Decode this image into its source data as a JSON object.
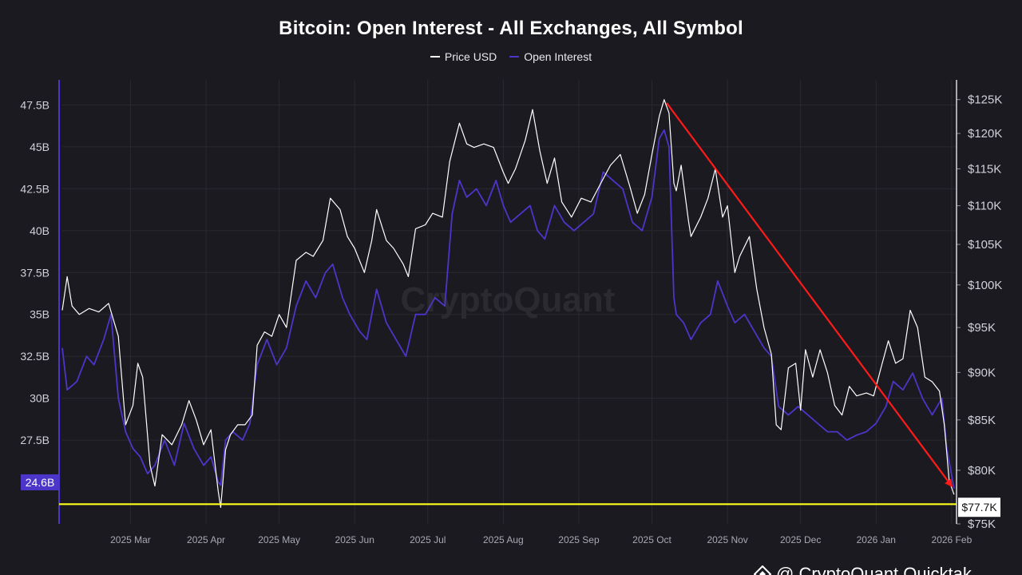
{
  "colors": {
    "background": "#1b1a20",
    "price": "#ffffff",
    "open_interest": "#4b36c9",
    "trend_arrow": "#ff1a1a",
    "support_line": "#ffff1a",
    "grid": "#2a2930",
    "axis_text": "#d0d0d8"
  },
  "watermark": "CryptoQuant",
  "badge_text": "@ CryptoQuant Quicktak...",
  "chart_data": {
    "type": "line",
    "title": "Bitcoin: Open Interest - All Exchanges, All Symbol",
    "grid": true,
    "legend_position": "top-center",
    "x_axis": {
      "type": "date",
      "range": [
        "2025-02-01",
        "2026-02-03"
      ],
      "tick_labels": [
        "2025 Mar",
        "2025 Apr",
        "2025 May",
        "2025 Jun",
        "2025 Jul",
        "2025 Aug",
        "2025 Sep",
        "2025 Oct",
        "2025 Nov",
        "2025 Dec",
        "2026 Jan",
        "2026 Feb"
      ],
      "tick_dates": [
        "2025-03-01",
        "2025-04-01",
        "2025-05-01",
        "2025-06-01",
        "2025-07-01",
        "2025-08-01",
        "2025-09-01",
        "2025-10-01",
        "2025-11-01",
        "2025-12-01",
        "2026-01-01",
        "2026-02-01"
      ]
    },
    "y_left": {
      "label": "",
      "range": [
        22.5,
        49.0
      ],
      "tick_values": [
        27.5,
        30,
        32.5,
        35,
        37.5,
        40,
        42.5,
        45,
        47.5
      ],
      "tick_labels": [
        "27.5B",
        "30B",
        "32.5B",
        "35B",
        "37.5B",
        "40B",
        "42.5B",
        "45B",
        "47.5B"
      ],
      "current_value": 24.6,
      "current_label": "24.6B"
    },
    "y_right": {
      "label": "",
      "scale": "log",
      "range": [
        75000,
        128000
      ],
      "tick_values": [
        75000,
        80000,
        85000,
        90000,
        95000,
        100000,
        105000,
        110000,
        115000,
        120000,
        125000
      ],
      "tick_labels": [
        "$75K",
        "$80K",
        "$85K",
        "$90K",
        "$95K",
        "$100K",
        "$105K",
        "$110K",
        "$115K",
        "$120K",
        "$125K"
      ],
      "current_value": 77700,
      "current_label": "$77.7K"
    },
    "series": [
      {
        "name": "Price USD",
        "axis": "right",
        "points": [
          [
            "2025-02-01",
            97000
          ],
          [
            "2025-02-03",
            101000
          ],
          [
            "2025-02-05",
            97500
          ],
          [
            "2025-02-08",
            96500
          ],
          [
            "2025-02-12",
            97200
          ],
          [
            "2025-02-16",
            96800
          ],
          [
            "2025-02-20",
            97800
          ],
          [
            "2025-02-24",
            94000
          ],
          [
            "2025-02-27",
            84500
          ],
          [
            "2025-03-02",
            86500
          ],
          [
            "2025-03-04",
            91000
          ],
          [
            "2025-03-06",
            89500
          ],
          [
            "2025-03-09",
            80500
          ],
          [
            "2025-03-11",
            78500
          ],
          [
            "2025-03-14",
            83500
          ],
          [
            "2025-03-18",
            82500
          ],
          [
            "2025-03-22",
            84500
          ],
          [
            "2025-03-25",
            87000
          ],
          [
            "2025-03-28",
            85000
          ],
          [
            "2025-03-31",
            82500
          ],
          [
            "2025-04-03",
            84000
          ],
          [
            "2025-04-06",
            78000
          ],
          [
            "2025-04-07",
            76500
          ],
          [
            "2025-04-09",
            82000
          ],
          [
            "2025-04-11",
            83500
          ],
          [
            "2025-04-14",
            84500
          ],
          [
            "2025-04-17",
            84500
          ],
          [
            "2025-04-20",
            85500
          ],
          [
            "2025-04-22",
            93000
          ],
          [
            "2025-04-25",
            94500
          ],
          [
            "2025-04-28",
            94000
          ],
          [
            "2025-05-01",
            96500
          ],
          [
            "2025-05-04",
            95000
          ],
          [
            "2025-05-08",
            103000
          ],
          [
            "2025-05-12",
            104000
          ],
          [
            "2025-05-15",
            103500
          ],
          [
            "2025-05-19",
            105500
          ],
          [
            "2025-05-22",
            111000
          ],
          [
            "2025-05-26",
            109500
          ],
          [
            "2025-05-29",
            106000
          ],
          [
            "2025-06-01",
            104500
          ],
          [
            "2025-06-05",
            101500
          ],
          [
            "2025-06-08",
            105500
          ],
          [
            "2025-06-10",
            109500
          ],
          [
            "2025-06-14",
            105500
          ],
          [
            "2025-06-17",
            104500
          ],
          [
            "2025-06-21",
            102500
          ],
          [
            "2025-06-23",
            101000
          ],
          [
            "2025-06-26",
            107000
          ],
          [
            "2025-06-30",
            107500
          ],
          [
            "2025-07-03",
            109000
          ],
          [
            "2025-07-07",
            108500
          ],
          [
            "2025-07-10",
            116000
          ],
          [
            "2025-07-14",
            121500
          ],
          [
            "2025-07-17",
            118500
          ],
          [
            "2025-07-20",
            118000
          ],
          [
            "2025-07-24",
            118500
          ],
          [
            "2025-07-28",
            118000
          ],
          [
            "2025-08-01",
            114500
          ],
          [
            "2025-08-03",
            113000
          ],
          [
            "2025-08-06",
            115000
          ],
          [
            "2025-08-10",
            119000
          ],
          [
            "2025-08-13",
            123500
          ],
          [
            "2025-08-16",
            117500
          ],
          [
            "2025-08-19",
            113000
          ],
          [
            "2025-08-22",
            116500
          ],
          [
            "2025-08-25",
            110500
          ],
          [
            "2025-08-29",
            108500
          ],
          [
            "2025-09-02",
            111000
          ],
          [
            "2025-09-06",
            110500
          ],
          [
            "2025-09-10",
            113000
          ],
          [
            "2025-09-14",
            115500
          ],
          [
            "2025-09-18",
            117000
          ],
          [
            "2025-09-22",
            112500
          ],
          [
            "2025-09-25",
            109000
          ],
          [
            "2025-09-28",
            111500
          ],
          [
            "2025-10-01",
            117000
          ],
          [
            "2025-10-04",
            122500
          ],
          [
            "2025-10-06",
            125000
          ],
          [
            "2025-10-08",
            123000
          ],
          [
            "2025-10-10",
            113000
          ],
          [
            "2025-10-11",
            112000
          ],
          [
            "2025-10-13",
            115500
          ],
          [
            "2025-10-16",
            108000
          ],
          [
            "2025-10-17",
            106000
          ],
          [
            "2025-10-21",
            108500
          ],
          [
            "2025-10-24",
            111000
          ],
          [
            "2025-10-27",
            115000
          ],
          [
            "2025-10-30",
            108500
          ],
          [
            "2025-11-01",
            110000
          ],
          [
            "2025-11-04",
            101500
          ],
          [
            "2025-11-06",
            103500
          ],
          [
            "2025-11-10",
            106000
          ],
          [
            "2025-11-13",
            99500
          ],
          [
            "2025-11-16",
            95000
          ],
          [
            "2025-11-19",
            92000
          ],
          [
            "2025-11-21",
            84500
          ],
          [
            "2025-11-23",
            84000
          ],
          [
            "2025-11-26",
            90500
          ],
          [
            "2025-11-29",
            91000
          ],
          [
            "2025-12-01",
            86000
          ],
          [
            "2025-12-03",
            92500
          ],
          [
            "2025-12-06",
            89500
          ],
          [
            "2025-12-09",
            92500
          ],
          [
            "2025-12-12",
            90000
          ],
          [
            "2025-12-15",
            86500
          ],
          [
            "2025-12-18",
            85500
          ],
          [
            "2025-12-21",
            88500
          ],
          [
            "2025-12-24",
            87500
          ],
          [
            "2025-12-28",
            87800
          ],
          [
            "2025-12-31",
            87500
          ],
          [
            "2026-01-03",
            90500
          ],
          [
            "2026-01-06",
            93500
          ],
          [
            "2026-01-09",
            91000
          ],
          [
            "2026-01-12",
            91500
          ],
          [
            "2026-01-15",
            97000
          ],
          [
            "2026-01-18",
            95000
          ],
          [
            "2026-01-21",
            89500
          ],
          [
            "2026-01-24",
            89000
          ],
          [
            "2026-01-27",
            88000
          ],
          [
            "2026-01-29",
            84500
          ],
          [
            "2026-01-31",
            79000
          ],
          [
            "2026-02-02",
            77700
          ]
        ]
      },
      {
        "name": "Open Interest",
        "axis": "left",
        "points": [
          [
            "2025-02-01",
            33.0
          ],
          [
            "2025-02-03",
            30.5
          ],
          [
            "2025-02-07",
            31.0
          ],
          [
            "2025-02-11",
            32.5
          ],
          [
            "2025-02-14",
            32.0
          ],
          [
            "2025-02-18",
            33.5
          ],
          [
            "2025-02-21",
            35.0
          ],
          [
            "2025-02-24",
            30.0
          ],
          [
            "2025-02-27",
            28.0
          ],
          [
            "2025-03-02",
            27.0
          ],
          [
            "2025-03-05",
            26.5
          ],
          [
            "2025-03-08",
            25.5
          ],
          [
            "2025-03-11",
            26.0
          ],
          [
            "2025-03-15",
            27.5
          ],
          [
            "2025-03-19",
            26.0
          ],
          [
            "2025-03-23",
            28.5
          ],
          [
            "2025-03-27",
            27.0
          ],
          [
            "2025-03-31",
            26.0
          ],
          [
            "2025-04-03",
            26.5
          ],
          [
            "2025-04-06",
            25.0
          ],
          [
            "2025-04-07",
            24.8
          ],
          [
            "2025-04-09",
            27.5
          ],
          [
            "2025-04-12",
            28.0
          ],
          [
            "2025-04-16",
            27.5
          ],
          [
            "2025-04-19",
            28.5
          ],
          [
            "2025-04-22",
            32.0
          ],
          [
            "2025-04-26",
            33.5
          ],
          [
            "2025-04-30",
            32.0
          ],
          [
            "2025-05-04",
            33.0
          ],
          [
            "2025-05-08",
            35.5
          ],
          [
            "2025-05-12",
            37.0
          ],
          [
            "2025-05-16",
            36.0
          ],
          [
            "2025-05-20",
            37.5
          ],
          [
            "2025-05-23",
            38.0
          ],
          [
            "2025-05-27",
            36.0
          ],
          [
            "2025-05-30",
            35.0
          ],
          [
            "2025-06-03",
            34.0
          ],
          [
            "2025-06-06",
            33.5
          ],
          [
            "2025-06-10",
            36.5
          ],
          [
            "2025-06-14",
            34.5
          ],
          [
            "2025-06-18",
            33.5
          ],
          [
            "2025-06-22",
            32.5
          ],
          [
            "2025-06-26",
            35.0
          ],
          [
            "2025-06-30",
            35.0
          ],
          [
            "2025-07-04",
            36.0
          ],
          [
            "2025-07-08",
            35.5
          ],
          [
            "2025-07-11",
            41.0
          ],
          [
            "2025-07-14",
            43.0
          ],
          [
            "2025-07-17",
            42.0
          ],
          [
            "2025-07-21",
            42.5
          ],
          [
            "2025-07-25",
            41.5
          ],
          [
            "2025-07-29",
            43.0
          ],
          [
            "2025-08-01",
            41.5
          ],
          [
            "2025-08-04",
            40.5
          ],
          [
            "2025-08-08",
            41.0
          ],
          [
            "2025-08-12",
            41.5
          ],
          [
            "2025-08-15",
            40.0
          ],
          [
            "2025-08-18",
            39.5
          ],
          [
            "2025-08-22",
            41.5
          ],
          [
            "2025-08-26",
            40.5
          ],
          [
            "2025-08-30",
            40.0
          ],
          [
            "2025-09-03",
            40.5
          ],
          [
            "2025-09-07",
            41.0
          ],
          [
            "2025-09-11",
            43.5
          ],
          [
            "2025-09-15",
            43.0
          ],
          [
            "2025-09-19",
            42.5
          ],
          [
            "2025-09-23",
            40.5
          ],
          [
            "2025-09-27",
            40.0
          ],
          [
            "2025-10-01",
            42.0
          ],
          [
            "2025-10-04",
            45.5
          ],
          [
            "2025-10-06",
            46.0
          ],
          [
            "2025-10-08",
            45.0
          ],
          [
            "2025-10-10",
            36.0
          ],
          [
            "2025-10-11",
            35.0
          ],
          [
            "2025-10-14",
            34.5
          ],
          [
            "2025-10-17",
            33.5
          ],
          [
            "2025-10-21",
            34.5
          ],
          [
            "2025-10-25",
            35.0
          ],
          [
            "2025-10-28",
            37.0
          ],
          [
            "2025-11-01",
            35.5
          ],
          [
            "2025-11-04",
            34.5
          ],
          [
            "2025-11-08",
            35.0
          ],
          [
            "2025-11-12",
            34.0
          ],
          [
            "2025-11-16",
            33.0
          ],
          [
            "2025-11-19",
            32.5
          ],
          [
            "2025-11-22",
            29.5
          ],
          [
            "2025-11-26",
            29.0
          ],
          [
            "2025-11-30",
            29.5
          ],
          [
            "2025-12-04",
            29.0
          ],
          [
            "2025-12-08",
            28.5
          ],
          [
            "2025-12-12",
            28.0
          ],
          [
            "2025-12-16",
            28.0
          ],
          [
            "2025-12-20",
            27.5
          ],
          [
            "2025-12-24",
            27.8
          ],
          [
            "2025-12-28",
            28.0
          ],
          [
            "2026-01-01",
            28.5
          ],
          [
            "2026-01-05",
            29.5
          ],
          [
            "2026-01-08",
            31.0
          ],
          [
            "2026-01-12",
            30.5
          ],
          [
            "2026-01-16",
            31.5
          ],
          [
            "2026-01-20",
            30.0
          ],
          [
            "2026-01-24",
            29.0
          ],
          [
            "2026-01-28",
            30.0
          ],
          [
            "2026-01-30",
            27.0
          ],
          [
            "2026-02-02",
            24.6
          ]
        ]
      }
    ],
    "annotations": [
      {
        "type": "arrow",
        "from": {
          "x": "2025-10-07",
          "y_right": 124500
        },
        "to": {
          "x": "2026-02-01",
          "y_right": 78500
        }
      },
      {
        "type": "horizontal-line",
        "axis": "right",
        "value": 76800
      }
    ]
  }
}
